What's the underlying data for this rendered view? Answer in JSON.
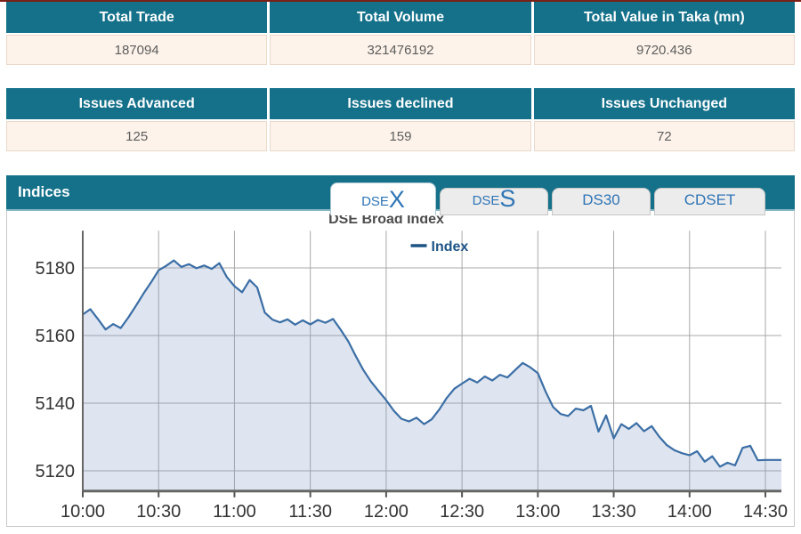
{
  "theme": {
    "header_teal": "#15718a",
    "row_cream": "#fdf3ea",
    "top_rule_maroon": "#7a2016",
    "tab_blue": "#2e74b5",
    "panel_border": "#c9c9c9",
    "axis_label_color": "#333333"
  },
  "summary_table": {
    "columns": [
      {
        "header": "Total Trade",
        "value": "187094"
      },
      {
        "header": "Total Volume",
        "value": "321476192"
      },
      {
        "header": "Total Value in Taka (mn)",
        "value": "9720.436"
      }
    ]
  },
  "issues_table": {
    "columns": [
      {
        "header": "Issues Advanced",
        "value": "125"
      },
      {
        "header": "Issues declined",
        "value": "159"
      },
      {
        "header": "Issues Unchanged",
        "value": "72"
      }
    ]
  },
  "indices_panel": {
    "title": "Indices",
    "chart_title": "DSE Broad Index",
    "tabs": [
      {
        "label_prefix": "DSE",
        "label_suffix": "X",
        "active": true
      },
      {
        "label_prefix": "DSE",
        "label_suffix": "S",
        "active": false
      },
      {
        "label": "DS30",
        "active": false
      },
      {
        "label": "CDSET",
        "active": false
      }
    ]
  },
  "chart_data": {
    "type": "area",
    "title": "DSE Broad Index",
    "legend_position": "top-center",
    "legend_color": "#1d5486",
    "grid": true,
    "x_ticks": [
      "10:00",
      "10:30",
      "11:00",
      "11:30",
      "12:00",
      "12:30",
      "13:00",
      "13:30",
      "14:00",
      "14:30"
    ],
    "y_ticks": [
      5120,
      5140,
      5160,
      5180
    ],
    "ylim": [
      5114,
      5191
    ],
    "series": [
      {
        "name": "Index",
        "color": "#3b6ea5",
        "fill": "rgba(125,152,194,0.25)",
        "x": [
          "10:00",
          "10:03",
          "10:06",
          "10:09",
          "10:12",
          "10:15",
          "10:18",
          "10:21",
          "10:24",
          "10:27",
          "10:30",
          "10:33",
          "10:36",
          "10:39",
          "10:42",
          "10:45",
          "10:48",
          "10:51",
          "10:54",
          "10:57",
          "11:00",
          "11:03",
          "11:06",
          "11:09",
          "11:12",
          "11:15",
          "11:18",
          "11:21",
          "11:24",
          "11:27",
          "11:30",
          "11:33",
          "11:36",
          "11:39",
          "11:42",
          "11:45",
          "11:48",
          "11:51",
          "11:54",
          "11:57",
          "12:00",
          "12:03",
          "12:06",
          "12:09",
          "12:12",
          "12:15",
          "12:18",
          "12:21",
          "12:24",
          "12:27",
          "12:30",
          "12:33",
          "12:36",
          "12:39",
          "12:42",
          "12:45",
          "12:48",
          "12:51",
          "12:54",
          "12:57",
          "13:00",
          "13:03",
          "13:06",
          "13:09",
          "13:12",
          "13:15",
          "13:18",
          "13:21",
          "13:24",
          "13:27",
          "13:30",
          "13:33",
          "13:36",
          "13:39",
          "13:42",
          "13:45",
          "13:48",
          "13:51",
          "13:54",
          "13:57",
          "14:00",
          "14:03",
          "14:06",
          "14:09",
          "14:12",
          "14:15",
          "14:18",
          "14:21",
          "14:24",
          "14:27",
          "14:30"
        ],
        "values": [
          5166.2,
          5167.8,
          5164.9,
          5161.8,
          5163.4,
          5162.2,
          5165.3,
          5168.8,
          5172.4,
          5175.7,
          5179.3,
          5180.6,
          5182.2,
          5180.3,
          5181.1,
          5179.9,
          5180.7,
          5179.7,
          5181.4,
          5177.3,
          5174.6,
          5172.8,
          5176.4,
          5174.2,
          5166.8,
          5164.7,
          5163.9,
          5164.8,
          5163.2,
          5164.5,
          5163.3,
          5164.6,
          5163.8,
          5164.9,
          5161.7,
          5158.3,
          5153.9,
          5149.8,
          5146.4,
          5143.6,
          5140.9,
          5137.8,
          5135.4,
          5134.6,
          5135.7,
          5133.8,
          5135.2,
          5138.1,
          5141.6,
          5144.3,
          5145.8,
          5147.2,
          5146.1,
          5147.9,
          5146.7,
          5148.4,
          5147.6,
          5149.8,
          5151.9,
          5150.6,
          5148.9,
          5143.5,
          5138.9,
          5136.8,
          5136.2,
          5138.4,
          5137.9,
          5139.2,
          5131.6,
          5136.4,
          5129.6,
          5133.8,
          5132.4,
          5134.1,
          5131.7,
          5133.2,
          5130.1,
          5127.6,
          5126.1,
          5125.2,
          5124.6,
          5125.8,
          5122.7,
          5124.3,
          5121.2,
          5122.4,
          5121.6,
          5126.8,
          5127.4,
          5123.1,
          5123.2
        ]
      }
    ]
  }
}
